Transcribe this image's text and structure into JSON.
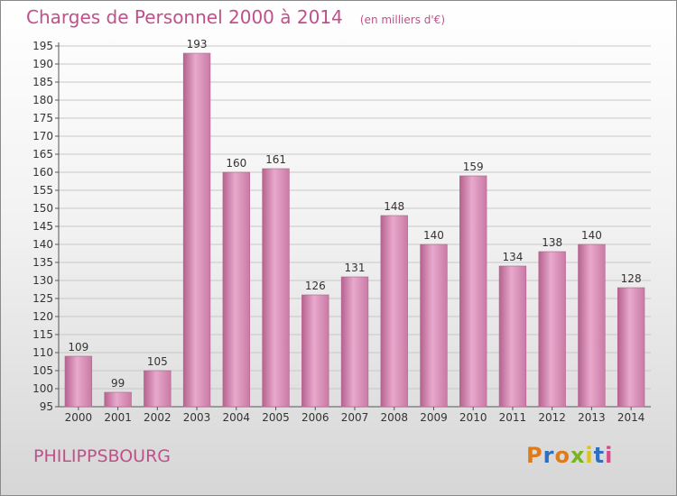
{
  "header": {
    "title": "Charges de Personnel 2000 à 2014",
    "subtitle": "(en milliers d'€)"
  },
  "footer": {
    "city": "PHILIPPSBOURG",
    "logo": "Proxiti"
  },
  "colors": {
    "bar": "#c97aa5",
    "bar_light": "#e8a9cc",
    "bar_dark": "#b5628f",
    "text_accent": "#c0508a"
  },
  "chart_data": {
    "type": "bar",
    "title": "Charges de Personnel 2000 à 2014",
    "subtitle": "(en milliers d'€)",
    "categories": [
      "2000",
      "2001",
      "2002",
      "2003",
      "2004",
      "2005",
      "2006",
      "2007",
      "2008",
      "2009",
      "2010",
      "2011",
      "2012",
      "2013",
      "2014"
    ],
    "values": [
      109,
      99,
      105,
      193,
      160,
      161,
      126,
      131,
      148,
      140,
      159,
      134,
      138,
      140,
      128
    ],
    "ylim": [
      95,
      195
    ],
    "yticks": [
      95,
      100,
      105,
      110,
      115,
      120,
      125,
      130,
      135,
      140,
      145,
      150,
      155,
      160,
      165,
      170,
      175,
      180,
      185,
      190,
      195
    ],
    "grid": true,
    "data_labels": true
  }
}
